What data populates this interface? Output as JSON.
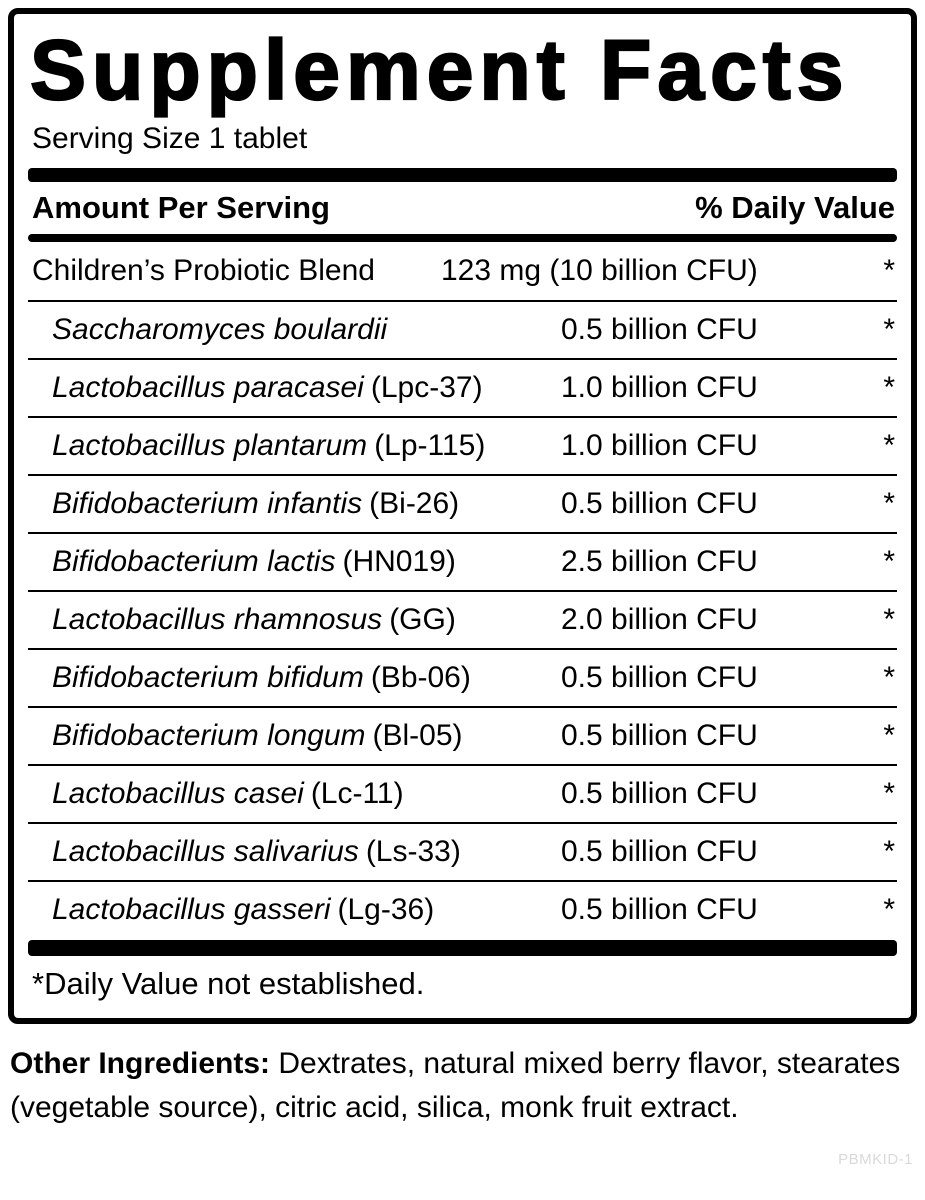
{
  "label": {
    "title": "Supplement Facts",
    "serving_size": "Serving Size 1 tablet",
    "header": {
      "amount_per_serving": "Amount Per Serving",
      "daily_value": "% Daily Value"
    },
    "rows": [
      {
        "name": "Children’s Probiotic Blend",
        "strain": "",
        "amount": "123 mg (10 billion CFU)",
        "dv": "*"
      },
      {
        "name": "Saccharomyces boulardii",
        "strain": "",
        "amount": "0.5 billion CFU",
        "dv": "*"
      },
      {
        "name": "Lactobacillus paracasei",
        "strain": "(Lpc-37)",
        "amount": "1.0 billion CFU",
        "dv": "*"
      },
      {
        "name": "Lactobacillus plantarum",
        "strain": "(Lp-115)",
        "amount": "1.0 billion CFU",
        "dv": "*"
      },
      {
        "name": "Bifidobacterium infantis",
        "strain": "(Bi-26)",
        "amount": "0.5 billion CFU",
        "dv": "*"
      },
      {
        "name": "Bifidobacterium lactis",
        "strain": "(HN019)",
        "amount": "2.5 billion CFU",
        "dv": "*"
      },
      {
        "name": "Lactobacillus rhamnosus",
        "strain": "(GG)",
        "amount": "2.0 billion CFU",
        "dv": "*"
      },
      {
        "name": "Bifidobacterium bifidum",
        "strain": "(Bb-06)",
        "amount": "0.5 billion CFU",
        "dv": "*"
      },
      {
        "name": "Bifidobacterium longum",
        "strain": "(Bl-05)",
        "amount": "0.5 billion CFU",
        "dv": "*"
      },
      {
        "name": "Lactobacillus casei",
        "strain": "(Lc-11)",
        "amount": "0.5 billion CFU",
        "dv": "*"
      },
      {
        "name": "Lactobacillus salivarius",
        "strain": "(Ls-33)",
        "amount": "0.5 billion CFU",
        "dv": "*"
      },
      {
        "name": "Lactobacillus gasseri",
        "strain": "(Lg-36)",
        "amount": "0.5 billion CFU",
        "dv": "*"
      }
    ],
    "footnote": "*Daily Value not established.",
    "other_ingredients_label": "Other Ingredients:",
    "other_ingredients_text": " Dextrates, natural mixed berry flavor, stearates (vegetable source), citric acid, silica, monk fruit extract.",
    "product_code": "PBMKID-1"
  }
}
